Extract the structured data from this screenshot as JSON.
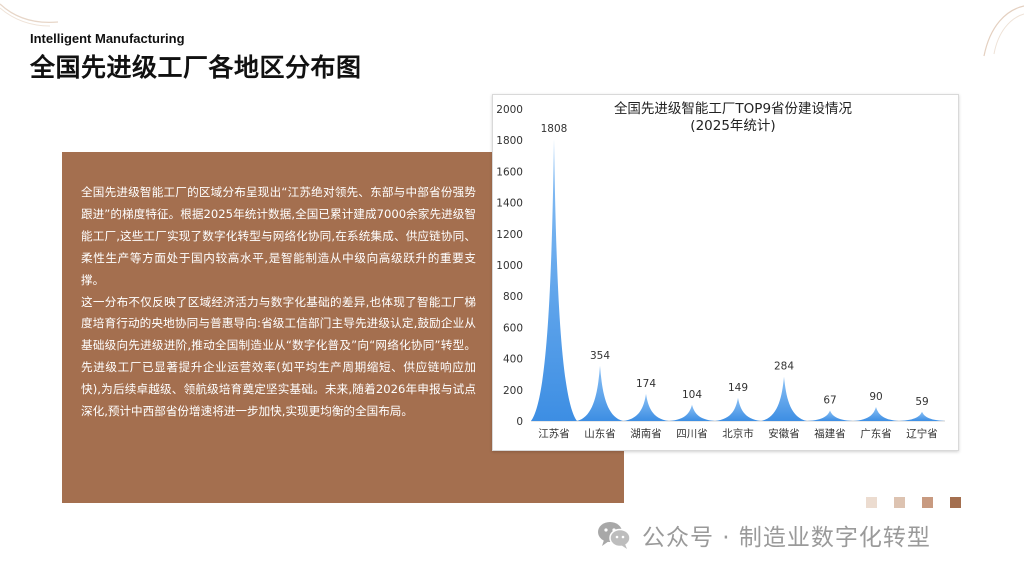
{
  "header": {
    "subtitle_en": "Intelligent Manufacturing",
    "title": "全国先进级工厂各地区分布图"
  },
  "panel": {
    "paragraphs": [
      "全国先进级智能工厂的区域分布呈现出“江苏绝对领先、东部与中部省份强势跟进”的梯度特征。根据2025年统计数据,全国已累计建成7000余家先进级智能工厂,这些工厂实现了数字化转型与网络化协同,在系统集成、供应链协同、柔性生产等方面处于国内较高水平,是智能制造从中级向高级跃升的重要支撑。",
      "这一分布不仅反映了区域经济活力与数字化基础的差异,也体现了智能工厂梯度培育行动的央地协同与普惠导向:省级工信部门主导先进级认定,鼓励企业从基础级向先进级进阶,推动全国制造业从“数字化普及”向“网络化协同”转型。先进级工厂已显著提升企业运营效率(如平均生产周期缩短、供应链响应加快),为后续卓越级、领航级培育奠定坚实基础。未来,随着2026年申报与试点深化,预计中西部省份增速将进一步加快,实现更均衡的全国布局。"
    ],
    "bg_color": "#a46f4f"
  },
  "chart_data": {
    "type": "area",
    "title_lines": [
      "全国先进级智能工厂TOP9省份建设情况",
      "(2025年统计)"
    ],
    "categories": [
      "江苏省",
      "山东省",
      "湖南省",
      "四川省",
      "北京市",
      "安徽省",
      "福建省",
      "广东省",
      "辽宁省"
    ],
    "values": [
      1808,
      354,
      174,
      104,
      149,
      284,
      67,
      90,
      59
    ],
    "data_labels": [
      "1808",
      "354",
      "174",
      "104",
      "149",
      "284",
      "67",
      "90",
      "59"
    ],
    "ylim": [
      0,
      2000
    ],
    "yticks": [
      "0",
      "200",
      "400",
      "600",
      "800",
      "1000",
      "1200",
      "1400",
      "1600",
      "1800",
      "2000"
    ],
    "grid": false,
    "legend": "none",
    "color_top": "#8cc1f5",
    "color_bottom": "#3d8ee3"
  },
  "decor": {
    "square_colors": [
      "#ecdcd0",
      "#ddc3b1",
      "#c89a80",
      "#a46f4f"
    ]
  },
  "watermark": {
    "text": "公众号 · 制造业数字化转型",
    "icon": "wechat-icon"
  }
}
